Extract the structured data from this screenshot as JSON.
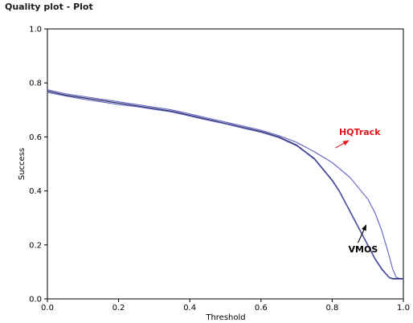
{
  "window": {
    "title": "Quality plot - Plot"
  },
  "colors": {
    "curve": "#5b5ec4",
    "curve_dark": "#2e3262",
    "hqtrack_annotation": "#e0171d",
    "vmos_annotation": "#000000",
    "axis": "#000000"
  },
  "chart_data": {
    "type": "line",
    "title": "",
    "xlabel": "Threshold",
    "ylabel": "Success",
    "xlim": [
      0.0,
      1.0
    ],
    "ylim": [
      0.0,
      1.0
    ],
    "xticks": [
      "0.0",
      "0.2",
      "0.4",
      "0.6",
      "0.8",
      "1.0"
    ],
    "yticks": [
      "0.0",
      "0.2",
      "0.4",
      "0.6",
      "0.8",
      "1.0"
    ],
    "grid": false,
    "legend": "none",
    "annotations": [
      {
        "text": "HQTrack",
        "color": "#e0171d",
        "target": [
          0.8,
          0.55
        ],
        "label_at": [
          0.86,
          0.61
        ]
      },
      {
        "text": "VMOS",
        "color": "#000000",
        "target": [
          0.9,
          0.28
        ],
        "label_at": [
          0.85,
          0.19
        ]
      }
    ],
    "series": [
      {
        "x": [
          0.0,
          0.05,
          0.1,
          0.15,
          0.2,
          0.25,
          0.3,
          0.35,
          0.4,
          0.45,
          0.5,
          0.55,
          0.6,
          0.65,
          0.7,
          0.75,
          0.8,
          0.85,
          0.9,
          0.92,
          0.94,
          0.96,
          0.97,
          0.98,
          0.99,
          1.0
        ],
        "y": [
          0.775,
          0.76,
          0.75,
          0.74,
          0.73,
          0.72,
          0.71,
          0.7,
          0.685,
          0.67,
          0.655,
          0.64,
          0.625,
          0.605,
          0.58,
          0.545,
          0.505,
          0.45,
          0.37,
          0.32,
          0.25,
          0.16,
          0.11,
          0.08,
          0.075,
          0.075
        ]
      },
      {
        "x": [
          0.0,
          0.05,
          0.1,
          0.15,
          0.2,
          0.25,
          0.3,
          0.35,
          0.4,
          0.45,
          0.5,
          0.55,
          0.6,
          0.65,
          0.7,
          0.75,
          0.8,
          0.82,
          0.84,
          0.86,
          0.88,
          0.9,
          0.92,
          0.94,
          0.96,
          0.97,
          0.98,
          1.0
        ],
        "y": [
          0.77,
          0.755,
          0.745,
          0.735,
          0.725,
          0.715,
          0.705,
          0.695,
          0.68,
          0.665,
          0.65,
          0.635,
          0.62,
          0.6,
          0.57,
          0.52,
          0.44,
          0.4,
          0.35,
          0.3,
          0.25,
          0.2,
          0.15,
          0.11,
          0.08,
          0.075,
          0.075,
          0.075
        ]
      },
      {
        "x": [
          0.0,
          0.05,
          0.1,
          0.15,
          0.2,
          0.25,
          0.3,
          0.35,
          0.4,
          0.45,
          0.5,
          0.55,
          0.6,
          0.65,
          0.7,
          0.75,
          0.8,
          0.82,
          0.84,
          0.86,
          0.88,
          0.9,
          0.92,
          0.94,
          0.96,
          0.97,
          0.98,
          1.0
        ],
        "y": [
          0.765,
          0.752,
          0.74,
          0.73,
          0.72,
          0.712,
          0.702,
          0.692,
          0.677,
          0.662,
          0.648,
          0.632,
          0.617,
          0.597,
          0.567,
          0.517,
          0.437,
          0.397,
          0.347,
          0.297,
          0.247,
          0.197,
          0.147,
          0.107,
          0.078,
          0.073,
          0.073,
          0.073
        ]
      }
    ]
  }
}
